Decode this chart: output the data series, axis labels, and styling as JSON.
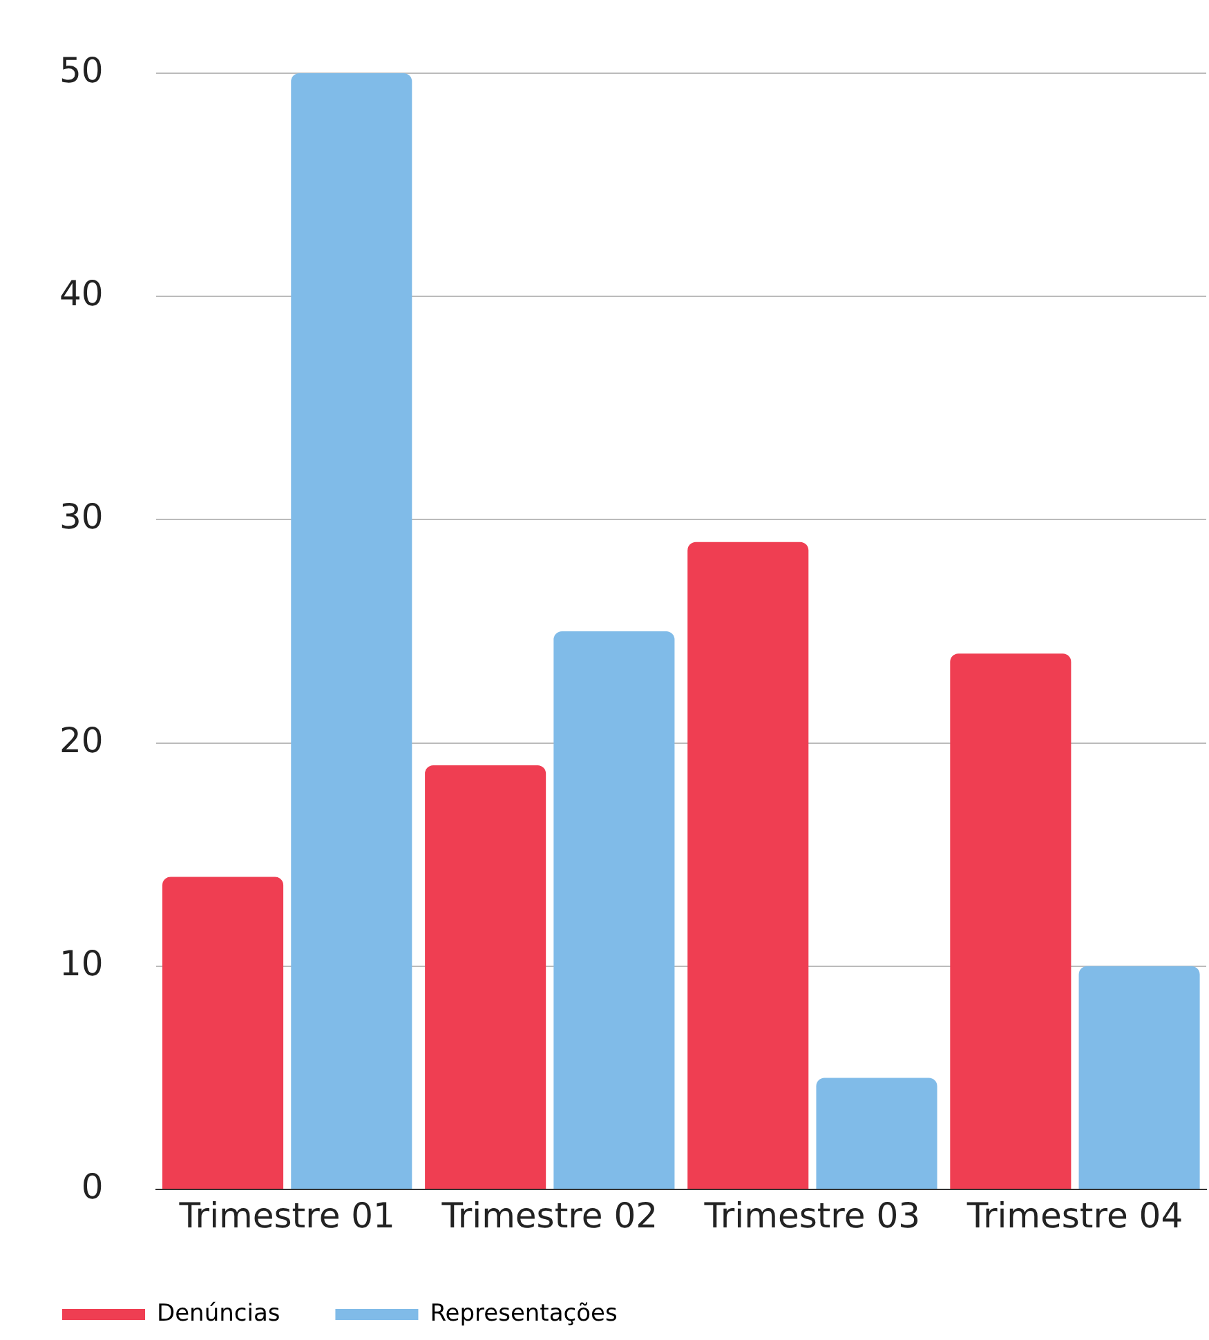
{
  "chart_data": {
    "type": "bar",
    "categories": [
      "Trimestre 01",
      "Trimestre 02",
      "Trimestre 03",
      "Trimestre 04"
    ],
    "series": [
      {
        "name": "Denúncias",
        "color": "#ef3e52",
        "values": [
          14,
          19,
          29,
          24
        ]
      },
      {
        "name": "Representações",
        "color": "#80bbe8",
        "values": [
          50,
          25,
          5,
          10
        ]
      }
    ],
    "ylim": [
      0,
      50
    ],
    "yticks": [
      0,
      10,
      20,
      30,
      40,
      50
    ],
    "grid": "y",
    "legend": "bottom"
  }
}
